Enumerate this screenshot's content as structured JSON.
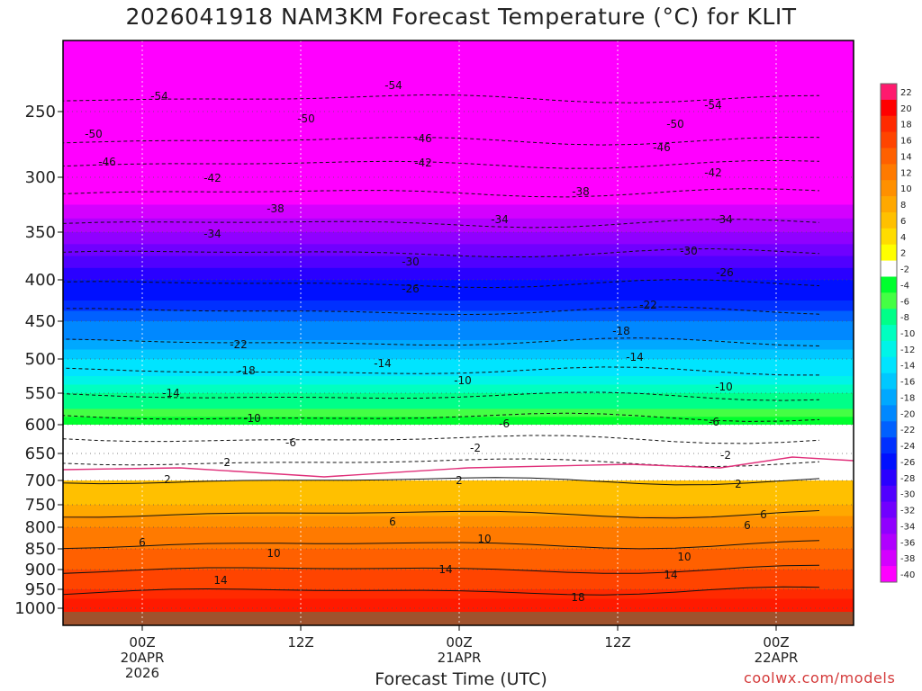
{
  "title": "2026041918 NAM3KM Forecast Temperature (°C) for KLIT",
  "xlabel": "Forecast Time (UTC)",
  "credit": "coolwx.com/models",
  "chart_data": {
    "type": "heatmap",
    "title": "2026041918 NAM3KM Forecast Temperature (°C) for KLIT",
    "xlabel": "Forecast Time (UTC)",
    "ylabel": "",
    "y_axis_ticks": [
      250,
      300,
      350,
      400,
      450,
      500,
      550,
      600,
      650,
      700,
      750,
      800,
      850,
      900,
      950,
      1000
    ],
    "x_axis_ticks": [
      {
        "lines": [
          "00Z",
          "20APR",
          "2026"
        ]
      },
      {
        "lines": [
          "12Z"
        ]
      },
      {
        "lines": [
          "00Z",
          "21APR"
        ]
      },
      {
        "lines": [
          "12Z"
        ]
      },
      {
        "lines": [
          "00Z",
          "22APR"
        ]
      }
    ],
    "colorbar_labels": [
      22,
      20,
      18,
      16,
      14,
      12,
      10,
      8,
      6,
      4,
      2,
      -2,
      -4,
      -6,
      -8,
      -10,
      -12,
      -14,
      -16,
      -18,
      -20,
      -22,
      -24,
      -26,
      -28,
      -30,
      -32,
      -34,
      -36,
      -38,
      -40
    ],
    "colorbar_colors": [
      "#ff1a6e",
      "#ff0000",
      "#ff2a00",
      "#ff4400",
      "#ff6000",
      "#ff7a00",
      "#ff9000",
      "#ffa800",
      "#ffc000",
      "#ffdc00",
      "#ffff00",
      "#ffffff",
      "#00ff2e",
      "#44ff44",
      "#00ff88",
      "#00ffc0",
      "#00f4e8",
      "#00e4ff",
      "#00c8ff",
      "#00a8ff",
      "#0088ff",
      "#0060ff",
      "#0030ff",
      "#0010ff",
      "#2a00ff",
      "#5000ff",
      "#7000ff",
      "#9000ff",
      "#b000ff",
      "#d400ff",
      "#ff00ff"
    ],
    "contour_labels": [
      {
        "value": -54
      },
      {
        "value": -54
      },
      {
        "value": -54
      },
      {
        "value": -50
      },
      {
        "value": -50
      },
      {
        "value": -50
      },
      {
        "value": -46
      },
      {
        "value": -46
      },
      {
        "value": -46
      },
      {
        "value": -42
      },
      {
        "value": -42
      },
      {
        "value": -42
      },
      {
        "value": -38
      },
      {
        "value": -38
      },
      {
        "value": -34
      },
      {
        "value": -34
      },
      {
        "value": -34
      },
      {
        "value": -30
      },
      {
        "value": -30
      },
      {
        "value": -26
      },
      {
        "value": -26
      },
      {
        "value": -22
      },
      {
        "value": -22
      },
      {
        "value": -18
      },
      {
        "value": -18
      },
      {
        "value": -14
      },
      {
        "value": -14
      },
      {
        "value": -14
      },
      {
        "value": -10
      },
      {
        "value": -10
      },
      {
        "value": -6
      },
      {
        "value": -6
      },
      {
        "value": -2
      },
      {
        "value": -2
      },
      {
        "value": -10
      },
      {
        "value": -6
      },
      {
        "value": -2
      },
      {
        "value": 2
      },
      {
        "value": 2
      },
      {
        "value": 2
      },
      {
        "value": 6
      },
      {
        "value": 6
      },
      {
        "value": 6
      },
      {
        "value": 6
      },
      {
        "value": 10
      },
      {
        "value": 10
      },
      {
        "value": 10
      },
      {
        "value": 14
      },
      {
        "value": 14
      },
      {
        "value": 14
      },
      {
        "value": 18
      }
    ]
  }
}
